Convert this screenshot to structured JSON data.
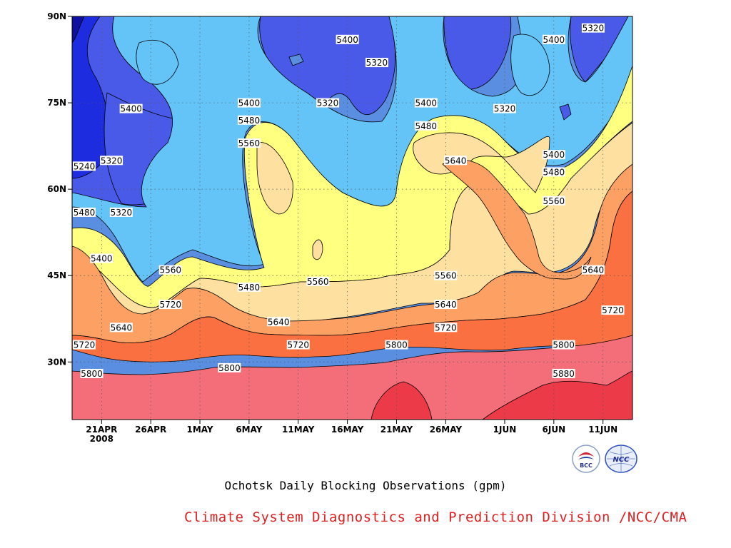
{
  "chart_data": {
    "type": "contour",
    "title": "Ochotsk Daily Blocking Observations (gpm)",
    "credit": "Climate System Diagnostics and Prediction Division /NCC/CMA",
    "x_ticks": [
      "21APR",
      "26APR",
      "1MAY",
      "6MAY",
      "11MAY",
      "16MAY",
      "21MAY",
      "26MAY",
      "1JUN",
      "6JUN",
      "11JUN"
    ],
    "x_sub_label": "2008",
    "y_ticks": [
      "30N",
      "45N",
      "60N",
      "75N",
      "90N"
    ],
    "y_range": [
      "20N",
      "90N"
    ],
    "x_range": [
      "18APR2008",
      "14JUN2008"
    ],
    "unit": "gpm",
    "contour_levels": [
      5240,
      5320,
      5400,
      5480,
      5560,
      5640,
      5720,
      5800,
      5880
    ],
    "fill_colors": {
      "lt5240": "#1010a0",
      "5240_5320": "#1e2ce0",
      "5320_5400": "#4a5ae8",
      "5400_5480": "#5a8ee0",
      "5480_5560": "#64c4f8",
      "5560_5640": "#ffff80",
      "5640_5720": "#fee0a0",
      "5720_5800": "#fca064",
      "5800_5880": "#fa7040",
      "5880_5960": "#f46e7a",
      "gt5960": "#ec3a48"
    },
    "contour_labels": [
      {
        "text": "5400",
        "date": "16MAY",
        "lat": "86N"
      },
      {
        "text": "5320",
        "date": "19MAY",
        "lat": "82N"
      },
      {
        "text": "5400",
        "date": "6JUN",
        "lat": "86N"
      },
      {
        "text": "5320",
        "date": "10JUN",
        "lat": "88N"
      },
      {
        "text": "5400",
        "date": "24APR",
        "lat": "74N"
      },
      {
        "text": "5400",
        "date": "6MAY",
        "lat": "75N"
      },
      {
        "text": "5320",
        "date": "14MAY",
        "lat": "75N"
      },
      {
        "text": "5400",
        "date": "24MAY",
        "lat": "75N"
      },
      {
        "text": "5320",
        "date": "1JUN",
        "lat": "74N"
      },
      {
        "text": "5480",
        "date": "6MAY",
        "lat": "72N"
      },
      {
        "text": "5480",
        "date": "24MAY",
        "lat": "71N"
      },
      {
        "text": "5560",
        "date": "6MAY",
        "lat": "68N"
      },
      {
        "text": "5320",
        "date": "22APR",
        "lat": "65N"
      },
      {
        "text": "5640",
        "date": "27MAY",
        "lat": "65N"
      },
      {
        "text": "5400",
        "date": "6JUN",
        "lat": "66N"
      },
      {
        "text": "5240",
        "date": "18APR",
        "lat": "64N"
      },
      {
        "text": "5480",
        "date": "6JUN",
        "lat": "63N"
      },
      {
        "text": "5480",
        "date": "18APR",
        "lat": "56N"
      },
      {
        "text": "5320",
        "date": "23APR",
        "lat": "56N"
      },
      {
        "text": "5560",
        "date": "6JUN",
        "lat": "58N"
      },
      {
        "text": "5400",
        "date": "21APR",
        "lat": "48N"
      },
      {
        "text": "5560",
        "date": "28APR",
        "lat": "46N"
      },
      {
        "text": "5480",
        "date": "6MAY",
        "lat": "43N"
      },
      {
        "text": "5560",
        "date": "13MAY",
        "lat": "44N"
      },
      {
        "text": "5560",
        "date": "26MAY",
        "lat": "45N"
      },
      {
        "text": "5640",
        "date": "10JUN",
        "lat": "46N"
      },
      {
        "text": "5720",
        "date": "28APR",
        "lat": "40N"
      },
      {
        "text": "5640",
        "date": "26MAY",
        "lat": "40N"
      },
      {
        "text": "5720",
        "date": "12JUN",
        "lat": "39N"
      },
      {
        "text": "5640",
        "date": "9MAY",
        "lat": "37N"
      },
      {
        "text": "5720",
        "date": "26MAY",
        "lat": "36N"
      },
      {
        "text": "5640",
        "date": "23APR",
        "lat": "36N"
      },
      {
        "text": "5720",
        "date": "11MAY",
        "lat": "33N"
      },
      {
        "text": "5800",
        "date": "21MAY",
        "lat": "33N"
      },
      {
        "text": "5800",
        "date": "7JUN",
        "lat": "33N"
      },
      {
        "text": "5720",
        "date": "18APR",
        "lat": "33N"
      },
      {
        "text": "5800",
        "date": "4MAY",
        "lat": "29N"
      },
      {
        "text": "5800",
        "date": "20APR",
        "lat": "28N"
      },
      {
        "text": "5880",
        "date": "7JUN",
        "lat": "28N"
      }
    ]
  },
  "logos": {
    "left": {
      "icon": "bcc-logo",
      "text": "BCC"
    },
    "right": {
      "icon": "ncc-logo",
      "text": "NCC"
    }
  }
}
